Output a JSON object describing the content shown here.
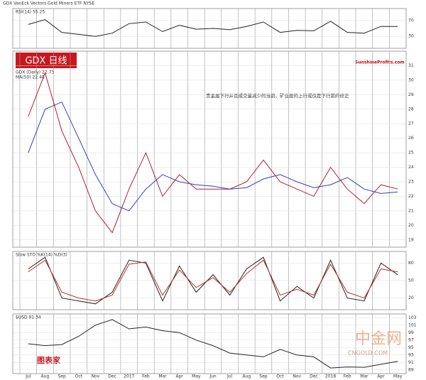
{
  "header": {
    "title": "GDX VanEck Vectors Gold Miners ETF NYSE",
    "badge": "GDX 日线",
    "annotation": "贵金属下行并且成交量减少的当前，矿业股的上行或仅是下行前的修正",
    "source": "SunshineProfits.com",
    "watermark": "中金网",
    "watermark_url": "CNGOLD.COM",
    "logo": "图表家"
  },
  "chart_data": [
    {
      "type": "line",
      "title": "RSI(14) 55.25",
      "ylim": [
        0,
        100
      ],
      "yticks": [
        30,
        70
      ],
      "series": [
        {
          "name": "RSI",
          "color": "#222",
          "values": [
            60,
            72,
            40,
            35,
            30,
            38,
            62,
            66,
            42,
            58,
            48,
            50,
            47,
            55,
            66,
            40,
            45,
            44,
            68,
            40,
            38,
            55,
            55
          ]
        }
      ]
    },
    {
      "type": "line",
      "legend": [
        "GDX (Daily) 22.73",
        "MA(50) 22.48"
      ],
      "ylim": [
        18.5,
        32
      ],
      "yticks": [
        19,
        20,
        21,
        22,
        23,
        24,
        25,
        26,
        27,
        28,
        29,
        30,
        31
      ],
      "series": [
        {
          "name": "GDX (Daily) 22.73",
          "color": "#b02030",
          "values": [
            27.5,
            30.5,
            26.5,
            24.0,
            21.0,
            19.5,
            22.5,
            25.0,
            22.0,
            23.5,
            22.5,
            22.5,
            22.5,
            23.0,
            24.5,
            23.0,
            22.5,
            22.0,
            24.0,
            22.5,
            21.5,
            22.8,
            22.5
          ]
        },
        {
          "name": "MA(50) 22.48",
          "color": "#3040c0",
          "values": [
            25,
            28,
            28.5,
            26,
            23.5,
            21.5,
            21,
            22.5,
            23.5,
            23,
            22.8,
            22.7,
            22.5,
            22.6,
            23.2,
            23.5,
            23,
            22.6,
            22.8,
            23.3,
            22.5,
            22.2,
            22.3
          ]
        }
      ]
    },
    {
      "type": "line",
      "title": "Slow STO %K(14) %D(3)",
      "ylim": [
        0,
        100
      ],
      "yticks": [
        20,
        50,
        80
      ],
      "series": [
        {
          "name": "%K",
          "color": "#222",
          "values": [
            70,
            90,
            20,
            15,
            10,
            30,
            85,
            80,
            15,
            75,
            30,
            60,
            25,
            70,
            90,
            15,
            40,
            20,
            85,
            20,
            15,
            80,
            60
          ]
        },
        {
          "name": "%D",
          "color": "#c03030",
          "values": [
            65,
            85,
            30,
            20,
            15,
            25,
            78,
            82,
            25,
            68,
            38,
            55,
            30,
            62,
            85,
            25,
            35,
            25,
            78,
            30,
            20,
            70,
            65
          ]
        }
      ]
    },
    {
      "type": "line",
      "title": "$USD 91.34",
      "ylim": [
        88,
        104
      ],
      "yticks": [
        89,
        91,
        93,
        95,
        97,
        99,
        101,
        103
      ],
      "categories": [
        "Jul",
        "Aug",
        "Sep",
        "Oct",
        "Nov",
        "Dec",
        "2017",
        "Feb",
        "Mar",
        "Apr",
        "May",
        "Jun",
        "Jul",
        "Aug",
        "Sep",
        "Oct",
        "Nov",
        "Dec",
        "2018",
        "Feb",
        "Mar",
        "Apr",
        "May"
      ],
      "series": [
        {
          "name": "$USD",
          "color": "#222",
          "values": [
            96,
            95.5,
            95.8,
            98,
            101,
            102.5,
            100,
            100.5,
            99.5,
            99,
            97,
            95.5,
            93.5,
            93,
            92.5,
            94.5,
            93,
            92.5,
            89.5,
            89.8,
            89.7,
            90.5,
            91.3
          ]
        }
      ]
    }
  ]
}
